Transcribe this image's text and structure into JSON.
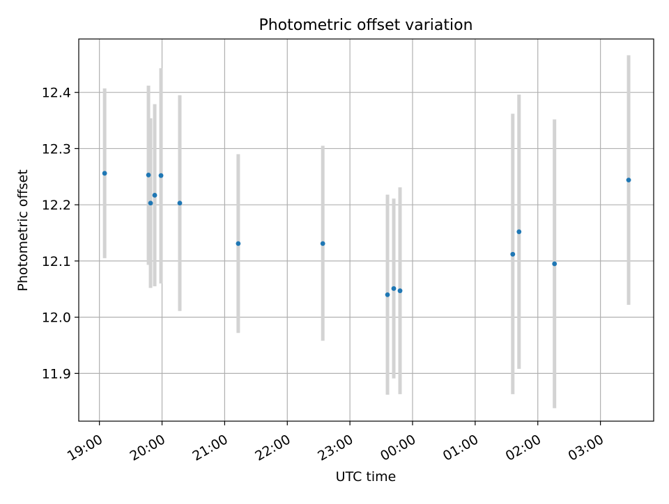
{
  "chart_data": {
    "type": "scatter",
    "title": "Photometric offset variation",
    "xlabel": "UTC time",
    "ylabel": "Photometric offset",
    "x_axis": {
      "kind": "time",
      "ticks": [
        "19:00",
        "20:00",
        "21:00",
        "22:00",
        "23:00",
        "00:00",
        "01:00",
        "02:00",
        "03:00"
      ]
    },
    "y_axis": {
      "ticks": [
        "11.9",
        "12.0",
        "12.1",
        "12.2",
        "12.3",
        "12.4"
      ]
    },
    "ylim": [
      11.815,
      12.495
    ],
    "grid": true,
    "marker_color": "#1f77b4",
    "errorbar_color": "#d3d3d3",
    "points": [
      {
        "time": "19:05",
        "y": 12.256,
        "low": 12.105,
        "high": 12.407
      },
      {
        "time": "19:47",
        "y": 12.253,
        "low": 12.093,
        "high": 12.412
      },
      {
        "time": "19:49",
        "y": 12.203,
        "low": 12.052,
        "high": 12.354
      },
      {
        "time": "19:53",
        "y": 12.217,
        "low": 12.055,
        "high": 12.379
      },
      {
        "time": "19:59",
        "y": 12.252,
        "low": 12.06,
        "high": 12.443
      },
      {
        "time": "20:17",
        "y": 12.203,
        "low": 12.011,
        "high": 12.395
      },
      {
        "time": "21:13",
        "y": 12.131,
        "low": 11.972,
        "high": 12.29
      },
      {
        "time": "22:34",
        "y": 12.131,
        "low": 11.958,
        "high": 12.305
      },
      {
        "time": "23:36",
        "y": 12.04,
        "low": 11.862,
        "high": 12.218
      },
      {
        "time": "23:42",
        "y": 12.051,
        "low": 11.891,
        "high": 12.211
      },
      {
        "time": "23:48",
        "y": 12.047,
        "low": 11.863,
        "high": 12.231
      },
      {
        "time": "01:36",
        "y": 12.112,
        "low": 11.863,
        "high": 12.362
      },
      {
        "time": "01:42",
        "y": 12.152,
        "low": 11.908,
        "high": 12.396
      },
      {
        "time": "02:16",
        "y": 12.095,
        "low": 11.838,
        "high": 12.352
      },
      {
        "time": "03:27",
        "y": 12.244,
        "low": 12.022,
        "high": 12.466
      }
    ]
  }
}
